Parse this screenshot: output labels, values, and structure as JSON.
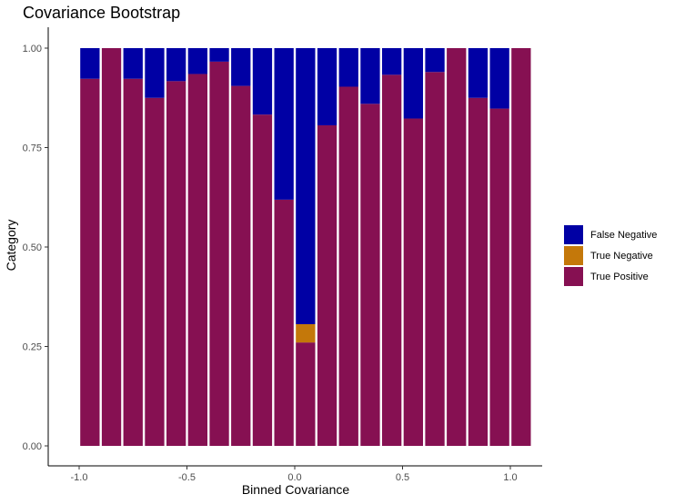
{
  "chart_data": {
    "type": "bar",
    "stacked": true,
    "title": "Covariance Bootstrap",
    "xlabel": "Binned Covariance",
    "ylabel": "Category",
    "xlim": [
      -1.05,
      1.05
    ],
    "ylim": [
      0,
      1
    ],
    "xticks": [
      "-1.0",
      "-0.5",
      "0.0",
      "0.5",
      "1.0"
    ],
    "xtick_values": [
      -1.0,
      -0.5,
      0.0,
      0.5,
      1.0
    ],
    "yticks": [
      "0.00",
      "0.25",
      "0.50",
      "0.75",
      "1.00"
    ],
    "ytick_values": [
      0,
      0.25,
      0.5,
      0.75,
      1.0
    ],
    "grid": false,
    "legend_position": "right",
    "x": [
      -0.95,
      -0.85,
      -0.75,
      -0.65,
      -0.55,
      -0.45,
      -0.35,
      -0.25,
      -0.15,
      -0.05,
      0.05,
      0.15,
      0.25,
      0.35,
      0.45,
      0.55,
      0.65,
      0.75,
      0.85,
      0.95,
      1.05
    ],
    "series": [
      {
        "name": "True Positive",
        "color": "#861052",
        "values": [
          0.923,
          1.0,
          0.923,
          0.875,
          0.917,
          0.935,
          0.966,
          0.905,
          0.833,
          0.619,
          0.26,
          0.806,
          0.903,
          0.86,
          0.933,
          0.823,
          0.94,
          1.0,
          0.875,
          0.848,
          1.0
        ]
      },
      {
        "name": "True Negative",
        "color": "#c4780a",
        "values": [
          0,
          0,
          0,
          0,
          0,
          0,
          0,
          0,
          0,
          0,
          0.046,
          0,
          0,
          0,
          0,
          0,
          0,
          0,
          0,
          0,
          0
        ]
      },
      {
        "name": "False Negative",
        "color": "#0000a4",
        "values": [
          0.077,
          0,
          0.077,
          0.125,
          0.083,
          0.065,
          0.034,
          0.095,
          0.167,
          0.381,
          0.694,
          0.194,
          0.097,
          0.14,
          0.067,
          0.177,
          0.06,
          0,
          0.125,
          0.152,
          0
        ]
      }
    ],
    "legend": [
      {
        "label": "False Negative",
        "color": "#0000a4"
      },
      {
        "label": "True Negative",
        "color": "#c4780a"
      },
      {
        "label": "True Positive",
        "color": "#861052"
      }
    ]
  }
}
